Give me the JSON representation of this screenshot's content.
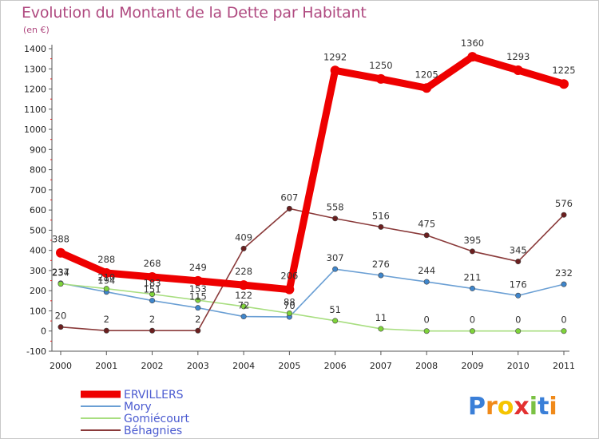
{
  "chart_data": {
    "type": "line",
    "title": "Evolution du Montant de la Dette par Habitant",
    "subtitle": "(en €)",
    "xlabel": "",
    "ylabel": "",
    "ylim": [
      -100,
      1400
    ],
    "yticks": [
      -100,
      0,
      100,
      200,
      300,
      400,
      500,
      600,
      700,
      800,
      900,
      1000,
      1100,
      1200,
      1300,
      1400
    ],
    "categories": [
      "2000",
      "2001",
      "2002",
      "2003",
      "2004",
      "2005",
      "2006",
      "2007",
      "2008",
      "2009",
      "2010",
      "2011"
    ],
    "series": [
      {
        "name": "ERVILLERS",
        "color": "#ee0000",
        "marker": "#ee0000",
        "thick": true,
        "values": [
          388,
          288,
          268,
          249,
          228,
          206,
          1292,
          1250,
          1205,
          1360,
          1293,
          1225
        ]
      },
      {
        "name": "Mory",
        "color": "#6a9fd4",
        "marker": "#3f86cc",
        "thick": false,
        "values": [
          237,
          194,
          151,
          115,
          72,
          70,
          307,
          276,
          244,
          211,
          176,
          232
        ]
      },
      {
        "name": "Gomiécourt",
        "color": "#a8de80",
        "marker": "#7fd43a",
        "thick": false,
        "values": [
          234,
          210,
          183,
          153,
          122,
          88,
          51,
          11,
          0,
          0,
          0,
          0
        ]
      },
      {
        "name": "Béhagnies",
        "color": "#8a3a3a",
        "marker": "#6b1f1f",
        "thick": false,
        "values": [
          20,
          2,
          2,
          2,
          409,
          607,
          558,
          516,
          475,
          395,
          345,
          576
        ]
      }
    ],
    "legend_position": "bottom-left",
    "grid": false
  },
  "brand": {
    "text": "Proxiti",
    "letters": [
      "P",
      "r",
      "o",
      "x",
      "i",
      "t",
      "i"
    ]
  }
}
